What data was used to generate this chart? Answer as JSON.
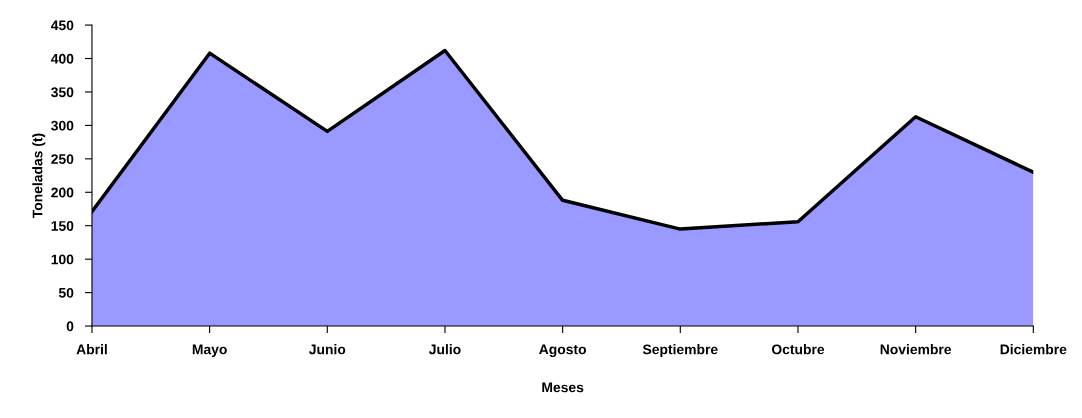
{
  "chart_data": {
    "type": "area",
    "xlabel": "Meses",
    "ylabel": "Toneladas (t)",
    "categories": [
      "Abril",
      "Mayo",
      "Junio",
      "Julio",
      "Agosto",
      "Septiembre",
      "Octubre",
      "Noviembre",
      "Diciembre"
    ],
    "series": [
      {
        "color": "#9999ff",
        "values": [
          171,
          408,
          291,
          412,
          188,
          145,
          156,
          313,
          230
        ]
      }
    ],
    "ylim": [
      0,
      450
    ],
    "yticks": [
      0,
      50,
      100,
      150,
      200,
      250,
      300,
      350,
      400,
      450
    ],
    "grid": false,
    "legend": false
  }
}
